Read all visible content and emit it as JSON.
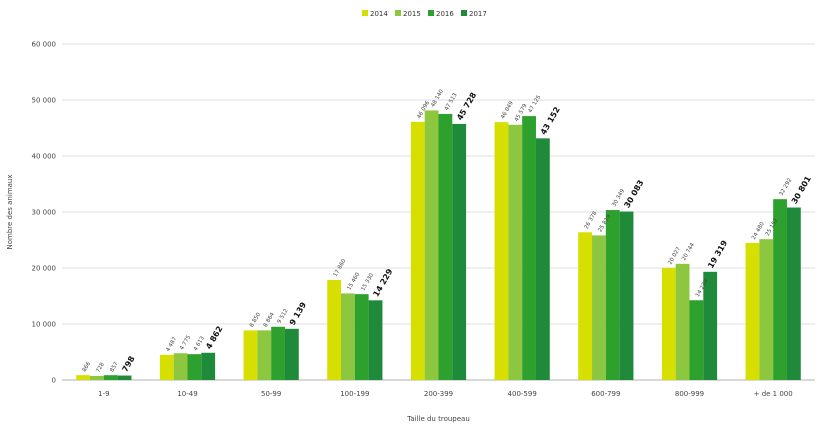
{
  "chart_data": {
    "type": "bar",
    "xlabel": "Taille du troupeau",
    "ylabel": "Nombre des animaux",
    "ylim": [
      0,
      60000
    ],
    "yticks": [
      "0",
      "10 000",
      "20 000",
      "30 000",
      "40 000",
      "50 000",
      "60 000"
    ],
    "categories": [
      "1-9",
      "10-49",
      "50-99",
      "100-199",
      "200-399",
      "400-599",
      "600-799",
      "800-999",
      "+ de 1 000"
    ],
    "legend_position": "top-center",
    "grid": true,
    "series": [
      {
        "name": "2014",
        "color": "#d7df01",
        "values": [
          866,
          4487,
          8850,
          17860,
          46096,
          46049,
          26378,
          20027,
          24480
        ]
      },
      {
        "name": "2015",
        "color": "#8dc63f",
        "values": [
          728,
          4775,
          8864,
          15460,
          48140,
          45579,
          25819,
          20744,
          25152
        ]
      },
      {
        "name": "2016",
        "color": "#2ea02e",
        "values": [
          857,
          4613,
          9512,
          15330,
          47513,
          47125,
          30349,
          14239,
          32292
        ]
      },
      {
        "name": "2017",
        "color": "#1f8a3a",
        "values": [
          798,
          4862,
          9139,
          14229,
          45728,
          43152,
          30083,
          19319,
          30801
        ]
      }
    ],
    "data_labels": [
      [
        "866",
        "728",
        "857",
        "798"
      ],
      [
        "4 487",
        "4 775",
        "4 613",
        "4 862"
      ],
      [
        "8 850",
        "8 864",
        "9 512",
        "9 139"
      ],
      [
        "17 860",
        "15 460",
        "15 330",
        "14 229"
      ],
      [
        "46 096",
        "48 140",
        "47 513",
        "45 728"
      ],
      [
        "46 049",
        "45 579",
        "47 125",
        "43 152"
      ],
      [
        "26 378",
        "25 819",
        "30 349",
        "30 083"
      ],
      [
        "20 027",
        "20 744",
        "14 239",
        "19 319"
      ],
      [
        "24 480",
        "25 152",
        "32 292",
        "30 801"
      ]
    ]
  }
}
